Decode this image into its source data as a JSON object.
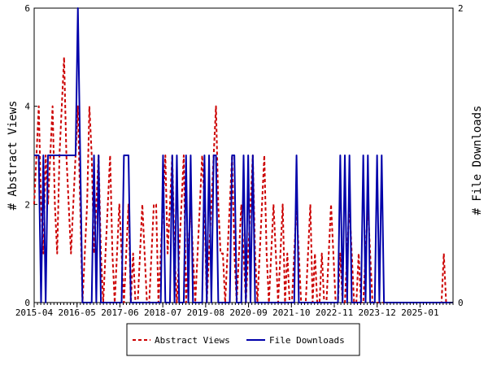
{
  "chart_data": {
    "type": "line",
    "title": "",
    "xlabel": "",
    "ylabel": "# Abstract Views",
    "y2label": "# File Downloads",
    "ylim": [
      0,
      6
    ],
    "y2lim": [
      0,
      2
    ],
    "y_ticks": [
      "0",
      "2",
      "4",
      "6"
    ],
    "y2_ticks": [
      "0",
      "2"
    ],
    "x_ticks": [
      "2015-04",
      "2016-05",
      "2017-06",
      "2018-07",
      "2019-08",
      "2020-09",
      "2021-10",
      "2022-11",
      "2023-12",
      "2025-01"
    ],
    "x_range_months": [
      "2015-04",
      "2025-11"
    ],
    "legend_position": "bottom",
    "grid": false,
    "series": [
      {
        "name": "Abstract Views",
        "axis": "left",
        "color": "#cc0000",
        "dash": "dashed",
        "values": [
          2,
          3,
          4,
          2,
          1,
          3,
          2,
          3,
          4,
          2,
          1,
          3,
          4,
          5,
          3,
          2,
          1,
          2,
          3,
          4,
          2,
          0,
          1,
          2,
          4,
          3,
          1,
          2,
          3,
          1,
          0,
          1,
          2,
          3,
          1,
          0,
          1,
          2,
          1,
          0,
          1,
          2,
          0,
          1,
          0,
          0,
          1,
          2,
          1,
          0,
          0,
          1,
          2,
          2,
          0,
          1,
          2,
          3,
          1,
          2,
          3,
          1,
          0,
          1,
          2,
          3,
          0,
          1,
          2,
          1,
          0,
          1,
          2,
          3,
          2,
          0,
          1,
          2,
          3,
          4,
          2,
          1,
          1,
          0,
          1,
          2,
          3,
          1,
          0,
          1,
          2,
          1,
          0,
          1,
          2,
          3,
          1,
          0,
          1,
          2,
          3,
          1,
          0,
          1,
          2,
          1,
          0,
          1,
          2,
          0,
          1,
          0,
          0,
          1,
          2,
          1,
          0,
          0,
          0,
          1,
          2,
          0,
          1,
          0,
          0,
          1,
          0,
          0,
          1,
          2,
          1,
          0,
          0,
          1,
          0,
          0,
          1,
          2,
          1,
          0,
          0,
          1,
          0,
          0,
          1,
          2,
          1,
          0,
          0,
          0,
          0,
          0,
          0,
          0,
          0,
          0,
          0,
          0,
          0,
          0,
          0,
          0,
          0,
          0,
          0,
          0,
          0,
          0,
          0,
          0,
          0,
          0,
          0,
          0,
          0,
          0,
          0,
          0,
          1,
          0,
          0,
          0,
          0
        ]
      },
      {
        "name": "File Downloads",
        "axis": "right",
        "color": "#0000aa",
        "dash": "solid",
        "values": [
          1,
          1,
          1,
          0,
          1,
          0,
          1,
          1,
          1,
          1,
          1,
          1,
          1,
          1,
          1,
          1,
          1,
          1,
          1,
          2,
          1,
          0,
          0,
          0,
          0,
          0,
          1,
          0,
          1,
          0,
          0,
          0,
          0,
          0,
          0,
          0,
          0,
          0,
          0,
          1,
          1,
          1,
          0,
          0,
          0,
          0,
          0,
          0,
          0,
          0,
          0,
          0,
          0,
          0,
          0,
          0,
          1,
          0,
          0,
          0,
          1,
          0,
          1,
          0,
          0,
          0,
          1,
          0,
          1,
          0,
          0,
          0,
          0,
          0,
          1,
          0,
          1,
          0,
          1,
          1,
          0,
          0,
          0,
          0,
          0,
          0,
          1,
          1,
          0,
          0,
          0,
          1,
          0,
          1,
          0,
          1,
          0,
          0,
          0,
          0,
          0,
          0,
          0,
          0,
          0,
          0,
          0,
          0,
          0,
          0,
          0,
          0,
          0,
          0,
          1,
          0,
          0,
          0,
          0,
          0,
          0,
          0,
          0,
          0,
          0,
          0,
          0,
          0,
          0,
          0,
          0,
          0,
          0,
          1,
          0,
          1,
          0,
          1,
          0,
          0,
          0,
          0,
          0,
          1,
          0,
          1,
          0,
          0,
          0,
          1,
          0,
          1,
          0,
          0,
          0,
          0,
          0,
          0,
          0,
          0,
          0,
          0,
          0,
          0,
          0,
          0,
          0,
          0,
          0,
          0,
          0,
          0,
          0,
          0,
          0,
          0,
          0,
          0,
          0,
          0,
          0,
          0,
          0
        ]
      }
    ]
  }
}
